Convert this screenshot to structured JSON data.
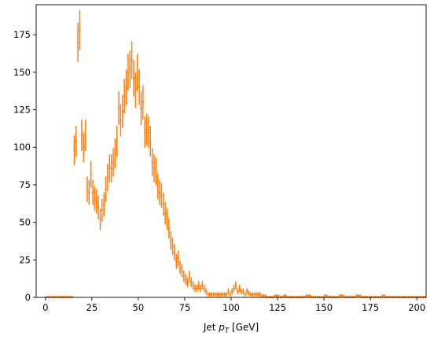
{
  "chart_data": {
    "type": "histogram",
    "xlabel_text": "Jet ",
    "xlabel_var": "p",
    "xlabel_sub": "T",
    "xlabel_unit": " [GeV]",
    "xlim": [
      -5,
      205
    ],
    "ylim": [
      0,
      195
    ],
    "xticks": [
      0,
      25,
      50,
      75,
      100,
      125,
      150,
      175,
      200
    ],
    "yticks": [
      0,
      25,
      50,
      75,
      100,
      125,
      150,
      175
    ],
    "bin_width": 1,
    "grid": false,
    "legend": "none",
    "series": [
      {
        "color": "#ff7f0e",
        "bins_start": 0,
        "values": [
          0,
          0,
          0,
          0,
          0,
          0,
          0,
          0,
          0,
          0,
          0,
          0,
          0,
          0,
          0,
          98,
          104,
          170,
          178,
          108,
          100,
          108,
          72,
          70,
          82,
          70,
          66,
          64,
          60,
          52,
          58,
          62,
          72,
          80,
          86,
          86,
          90,
          96,
          104,
          126,
          118,
          124,
          134,
          140,
          150,
          152,
          158,
          146,
          138,
          150,
          140,
          126,
          130,
          110,
          112,
          110,
          104,
          90,
          86,
          84,
          74,
          70,
          68,
          62,
          56,
          52,
          46,
          38,
          34,
          30,
          24,
          26,
          20,
          18,
          14,
          12,
          10,
          14,
          10,
          8,
          6,
          6,
          8,
          6,
          8,
          6,
          4,
          2,
          2,
          2,
          2,
          2,
          2,
          2,
          2,
          2,
          2,
          2,
          4,
          2,
          4,
          6,
          8,
          4,
          6,
          4,
          4,
          2,
          4,
          3,
          2,
          2,
          2,
          2,
          2,
          2,
          1,
          1,
          1,
          0,
          0,
          0,
          0,
          1,
          1,
          1,
          0,
          0,
          1,
          1,
          0,
          0,
          0,
          0,
          0,
          0,
          0,
          0,
          0,
          0,
          1,
          1,
          1,
          0,
          0,
          0,
          0,
          0,
          0,
          0,
          1,
          1,
          0,
          0,
          0,
          0,
          0,
          0,
          1,
          1,
          1,
          0,
          0,
          0,
          0,
          0,
          0,
          1,
          1,
          1,
          0,
          0,
          0,
          0,
          0,
          0,
          0,
          0,
          0,
          0,
          0,
          1,
          1,
          0,
          0,
          0,
          0,
          0,
          0,
          0,
          0,
          0,
          0,
          0,
          0,
          0,
          0,
          0,
          0,
          0,
          0,
          0,
          0,
          0,
          0
        ]
      }
    ]
  }
}
